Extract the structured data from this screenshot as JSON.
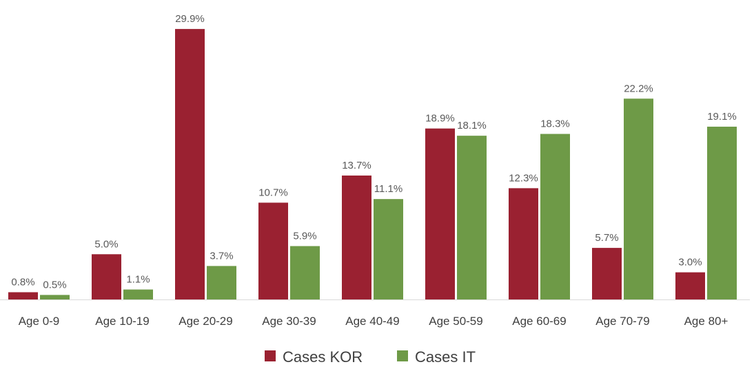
{
  "chart_data": {
    "type": "bar",
    "title": "",
    "xlabel": "",
    "ylabel": "",
    "ylim": [
      0,
      30
    ],
    "grid": false,
    "legend_position": "bottom",
    "categories": [
      "Age 0-9",
      "Age 10-19",
      "Age 20-29",
      "Age 30-39",
      "Age 40-49",
      "Age 50-59",
      "Age 60-69",
      "Age 70-79",
      "Age 80+"
    ],
    "series": [
      {
        "name": "Cases KOR",
        "color": "#9A2131",
        "values": [
          0.8,
          5.0,
          29.9,
          10.7,
          13.7,
          18.9,
          12.3,
          5.7,
          3.0
        ],
        "labels": [
          "0.8%",
          "5.0%",
          "29.9%",
          "10.7%",
          "13.7%",
          "18.9%",
          "12.3%",
          "5.7%",
          "3.0%"
        ]
      },
      {
        "name": "Cases IT",
        "color": "#6E9A47",
        "values": [
          0.5,
          1.1,
          3.7,
          5.9,
          11.1,
          18.1,
          18.3,
          22.2,
          19.1
        ],
        "labels": [
          "0.5%",
          "1.1%",
          "3.7%",
          "5.9%",
          "11.1%",
          "18.1%",
          "18.3%",
          "22.2%",
          "19.1%"
        ]
      }
    ]
  }
}
